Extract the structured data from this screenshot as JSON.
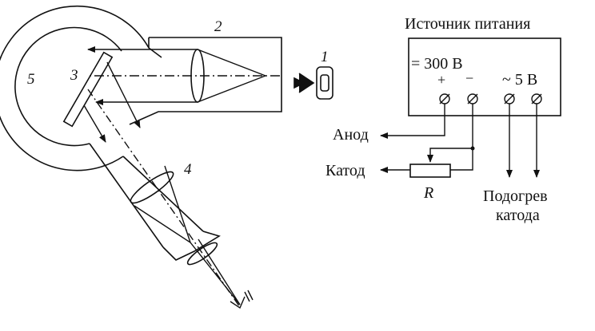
{
  "optics": {
    "labels": {
      "source": "1",
      "tube": "2",
      "mirror": "3",
      "eyepiece_tube": "4",
      "housing": "5"
    }
  },
  "power_supply": {
    "title": "Источник питания",
    "dc_label": "= 300 В",
    "plus": "+",
    "minus": "−",
    "ac_label": "~ 5 В",
    "anode": "Анод",
    "cathode": "Катод",
    "resistor": "R",
    "heater_line1": "Подогрев",
    "heater_line2": "катода"
  }
}
